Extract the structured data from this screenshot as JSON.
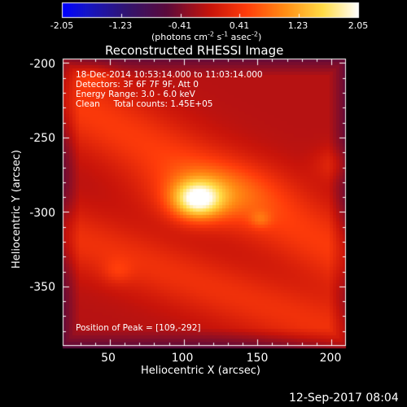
{
  "chart_data": {
    "type": "heatmap",
    "title": "Reconstructed RHESSI Image",
    "xlabel": "Heliocentric X (arcsec)",
    "ylabel": "Heliocentric Y (arcsec)",
    "xlim": [
      18,
      210
    ],
    "ylim": [
      -390,
      -197
    ],
    "x_ticks": [
      50,
      100,
      150,
      200
    ],
    "y_ticks": [
      -200,
      -250,
      -300,
      -350
    ],
    "colorbar": {
      "min": -2.05,
      "max": 2.05,
      "ticks": [
        "-2.05",
        "-1.23",
        "-0.41",
        "0.41",
        "1.23",
        "2.05"
      ],
      "unit_prefix": "(photons cm",
      "unit_parts": [
        "-2",
        " s",
        "-1",
        " asec",
        "-2",
        ")"
      ]
    },
    "info_lines": [
      "18-Dec-2014 10:53:14.000 to 11:03:14.000",
      "Detectors: 3F 6F 7F 9F, Att 0",
      "Energy Range: 3.0 - 6.0 keV",
      "Clean     Total counts: 1.45E+05"
    ],
    "peak_text": "Position of Peak = [109,-292]",
    "peak": {
      "x": 109,
      "y": -292,
      "value": 2.05
    },
    "blobs": [
      {
        "x": 109,
        "y": -292,
        "sx": 12,
        "sy": 9,
        "amp": 1.55
      },
      {
        "x": 120,
        "y": -287,
        "sx": 30,
        "sy": 14,
        "amp": 0.55
      },
      {
        "x": 152,
        "y": -305,
        "sx": 5,
        "sy": 4,
        "amp": 0.35
      },
      {
        "x": 202,
        "y": -268,
        "sx": 10,
        "sy": 8,
        "amp": 0.3
      },
      {
        "x": 55,
        "y": -340,
        "sx": 7,
        "sy": 6,
        "amp": 0.25
      },
      {
        "x": 40,
        "y": -210,
        "sx": 10,
        "sy": 6,
        "amp": 0.3
      }
    ],
    "bands": [
      {
        "x0": 30,
        "y0": -230,
        "slope": -0.55,
        "width": 28,
        "amp": 0.55
      },
      {
        "x0": 60,
        "y0": -330,
        "slope": -0.35,
        "width": 22,
        "amp": 0.45
      }
    ],
    "background": -0.1
  },
  "footer": {
    "timestamp": "12-Sep-2017 08:04"
  }
}
